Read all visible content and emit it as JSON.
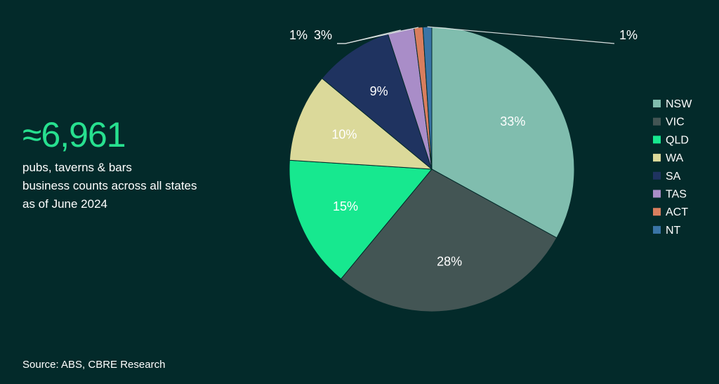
{
  "headline": {
    "value": "≈6,961",
    "lines": [
      "pubs, taverns & bars",
      "business counts across all states",
      "as of June 2024"
    ]
  },
  "source": "Source: ABS, CBRE Research",
  "chart_data": {
    "type": "pie",
    "legend_position": "right",
    "categories": [
      "NSW",
      "VIC",
      "QLD",
      "WA",
      "SA",
      "TAS",
      "ACT",
      "NT"
    ],
    "values": [
      33,
      28,
      15,
      10,
      9,
      3,
      1,
      1
    ],
    "labels": [
      "33%",
      "28%",
      "15%",
      "10%",
      "9%",
      "3%",
      "1%",
      "1%"
    ],
    "colors": [
      "#80bdae",
      "#435554",
      "#17e88f",
      "#dbd99a",
      "#1f3360",
      "#a98dc8",
      "#d97e5e",
      "#3a74a6"
    ]
  }
}
